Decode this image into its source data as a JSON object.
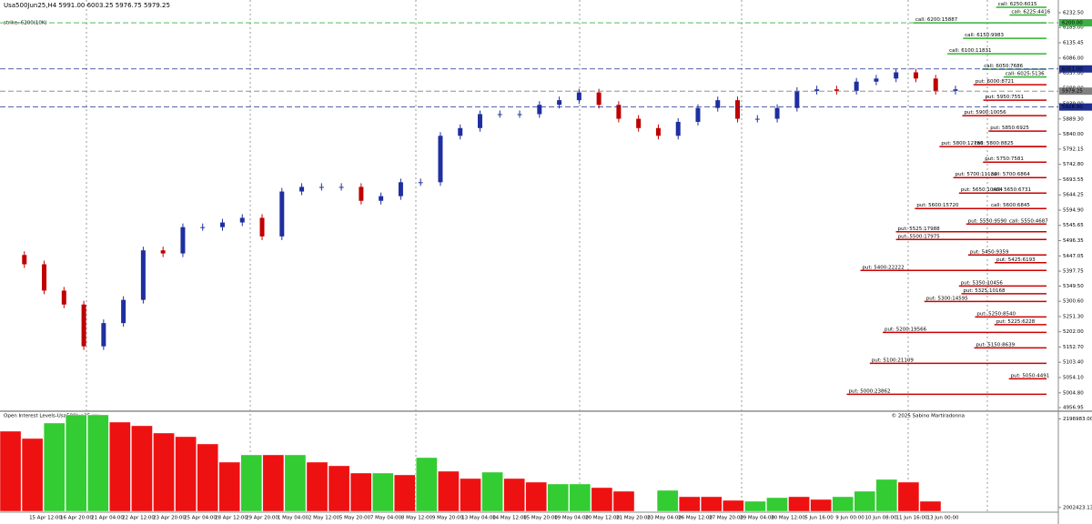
{
  "header": {
    "symbol_line": "Usa500Jun25,H4  5991.00 6003.25 5976.75 5979.25",
    "strike": "strike: 6200(10K)",
    "indicator": "Open Interest Levels-Usa500Jun25.csv",
    "copyright": "© 2025 Sabino Martiradonna"
  },
  "time_labels": [
    "15 Apr 12:00",
    "16 Apr 20:00",
    "21 Apr 04:00",
    "22 Apr 12:00",
    "23 Apr 20:00",
    "25 Apr 04:00",
    "28 Apr 12:00",
    "29 Apr 20:00",
    "1 May 04:00",
    "2 May 12:00",
    "5 May 20:00",
    "7 May 04:00",
    "8 May 12:00",
    "9 May 20:00",
    "13 May 04:00",
    "14 May 12:00",
    "15 May 20:00",
    "19 May 04:00",
    "20 May 12:00",
    "21 May 20:00",
    "23 May 04:00",
    "26 May 12:00",
    "27 May 20:00",
    "29 May 04:00",
    "30 May 12:00",
    "5 Jun 16:00",
    "9 Jun 00:00",
    "10 Jun 08:00",
    "11 Jun 16:00",
    "13 Jun 00:00"
  ],
  "chart_data": [
    {
      "type": "candle",
      "up_color": "#1f2fa0",
      "down_color": "#c00000",
      "ylim": [
        4951.3,
        6261.9
      ],
      "yticks": [
        {
          "value": 6232.5,
          "label": "6232.50"
        },
        {
          "value": 6185,
          "label": "6185.00"
        },
        {
          "value": 6135.45,
          "label": "6135.45"
        },
        {
          "value": 6086,
          "label": "6086.00"
        },
        {
          "value": 6037,
          "label": "6037.00"
        },
        {
          "value": 5988,
          "label": "5988.00"
        },
        {
          "value": 5939,
          "label": "5939.00"
        },
        {
          "value": 5889.3,
          "label": "5889.30"
        },
        {
          "value": 5840,
          "label": "5840.00"
        },
        {
          "value": 5792.15,
          "label": "5792.15"
        },
        {
          "value": 5742.8,
          "label": "5742.80"
        },
        {
          "value": 5693.55,
          "label": "5693.55"
        },
        {
          "value": 5644.25,
          "label": "5644.25"
        },
        {
          "value": 5594.9,
          "label": "5594.90"
        },
        {
          "value": 5545.65,
          "label": "5545.65"
        },
        {
          "value": 5496.35,
          "label": "5496.35"
        },
        {
          "value": 5447.05,
          "label": "5447.05"
        },
        {
          "value": 5397.75,
          "label": "5397.75"
        },
        {
          "value": 5349.5,
          "label": "5349.50"
        },
        {
          "value": 5300.6,
          "label": "5300.60"
        },
        {
          "value": 5251.3,
          "label": "5251.30"
        },
        {
          "value": 5202,
          "label": "5202.00"
        },
        {
          "value": 5152.7,
          "label": "5152.70"
        },
        {
          "value": 5103.4,
          "label": "5103.40"
        },
        {
          "value": 5054.1,
          "label": "5054.10"
        },
        {
          "value": 5004.8,
          "label": "5004.80"
        },
        {
          "value": 4956.95,
          "label": "4956.95"
        }
      ],
      "values": [
        5450,
        5420,
        5335,
        5290,
        5155,
        5230,
        5305,
        5465,
        5455,
        5540,
        5540,
        5555,
        5570,
        5510,
        5655,
        5670,
        5670,
        5670,
        5625,
        5640,
        5685,
        5685,
        5835,
        5860,
        5905,
        5905,
        5905,
        5935,
        5950,
        5975,
        5935,
        5890,
        5860,
        5835,
        5880,
        5925,
        5950,
        5890,
        5890,
        5925,
        5980,
        5985,
        5980,
        6010,
        6020,
        6040,
        6020,
        5980,
        5985
      ],
      "price_markers": [
        {
          "value": 6200,
          "label": "6200.00",
          "color": "#3cb043"
        },
        {
          "value": 6051,
          "label": "6051.00",
          "color": "#1f2f8f"
        },
        {
          "value": 5979.25,
          "label": "5979.25",
          "color": "#808080"
        },
        {
          "value": 5928,
          "label": "5928.00",
          "color": "#1f2f8f"
        }
      ],
      "levels": [
        {
          "side": "call",
          "strike": 6250,
          "oi": 6015,
          "label": "call: 6250:6015",
          "color": "#2fb52f"
        },
        {
          "side": "call",
          "strike": 6225,
          "oi": 4416,
          "label": "call: 6225:4416",
          "color": "#2fb52f"
        },
        {
          "side": "call",
          "strike": 6200,
          "oi": 15887,
          "label": "call: 6200:15887",
          "color": "#2fb52f"
        },
        {
          "side": "call",
          "strike": 6150,
          "oi": 9983,
          "label": "call: 6150:9983",
          "color": "#2fb52f"
        },
        {
          "side": "call",
          "strike": 6100,
          "oi": 11831,
          "label": "call: 6100:11831",
          "color": "#2fb52f"
        },
        {
          "side": "call",
          "strike": 6050,
          "oi": 7686,
          "label": "call: 6050:7686",
          "color": "#2fb52f"
        },
        {
          "side": "call",
          "strike": 6025,
          "oi": 5136,
          "label": "call: 6025:5136",
          "color": "#2fb52f"
        },
        {
          "side": "put",
          "strike": 6000,
          "oi": 8721,
          "label": "put: 6000:8721",
          "color": "#cc0000"
        },
        {
          "side": "put",
          "strike": 5950,
          "oi": 7551,
          "label": "put: 5950:7551",
          "color": "#cc0000"
        },
        {
          "side": "put",
          "strike": 5900,
          "oi": 10056,
          "label": "put: 5900:10056",
          "color": "#cc0000"
        },
        {
          "side": "put",
          "strike": 5850,
          "oi": 6925,
          "label": "put: 5850:6925",
          "color": "#cc0000"
        },
        {
          "side": "put",
          "strike": 5800,
          "oi": 12786,
          "label": "put: 5800:12786",
          "color": "#cc0000"
        },
        {
          "side": "call",
          "strike": 5800,
          "oi": 8825,
          "label": "call: 5800:8825",
          "color": "#cc0000"
        },
        {
          "side": "put",
          "strike": 5750,
          "oi": 7581,
          "label": "put: 5750:7581",
          "color": "#cc0000"
        },
        {
          "side": "put",
          "strike": 5700,
          "oi": 11130,
          "label": "put: 5700:11130",
          "color": "#cc0000"
        },
        {
          "side": "call",
          "strike": 5700,
          "oi": 6864,
          "label": "call: 5700:6864",
          "color": "#cc0000"
        },
        {
          "side": "put",
          "strike": 5650,
          "oi": 10454,
          "label": "put: 5650:10454",
          "color": "#cc0000"
        },
        {
          "side": "call",
          "strike": 5650,
          "oi": 6731,
          "label": "call: 5650:6731",
          "color": "#cc0000"
        },
        {
          "side": "put",
          "strike": 5600,
          "oi": 15720,
          "label": "put: 5600:15720",
          "color": "#cc0000"
        },
        {
          "side": "call",
          "strike": 5600,
          "oi": 6845,
          "label": "call: 5600:6845",
          "color": "#cc0000"
        },
        {
          "side": "put",
          "strike": 5550,
          "oi": 9590,
          "label": "put: 5550:9590",
          "color": "#cc0000"
        },
        {
          "side": "call",
          "strike": 5550,
          "oi": 4687,
          "label": "call: 5550:4687",
          "color": "#cc0000"
        },
        {
          "side": "put",
          "strike": 5525,
          "oi": 17988,
          "label": "put: 5525:17988",
          "color": "#cc0000"
        },
        {
          "side": "put",
          "strike": 5500,
          "oi": 17975,
          "label": "put: 5500:17975",
          "color": "#cc0000"
        },
        {
          "side": "put",
          "strike": 5450,
          "oi": 9359,
          "label": "put: 5450:9359",
          "color": "#cc0000"
        },
        {
          "side": "put",
          "strike": 5425,
          "oi": 6193,
          "label": "put: 5425:6193",
          "color": "#cc0000"
        },
        {
          "side": "put",
          "strike": 5400,
          "oi": 22222,
          "label": "put: 5400:22222",
          "color": "#cc0000"
        },
        {
          "side": "put",
          "strike": 5350,
          "oi": 10456,
          "label": "put: 5350:10456",
          "color": "#cc0000"
        },
        {
          "side": "put",
          "strike": 5325,
          "oi": 10168,
          "label": "put: 5325:10168",
          "color": "#cc0000"
        },
        {
          "side": "put",
          "strike": 5300,
          "oi": 14595,
          "label": "put: 5300:14595",
          "color": "#cc0000"
        },
        {
          "side": "put",
          "strike": 5250,
          "oi": 8540,
          "label": "put: 5250:8540",
          "color": "#cc0000"
        },
        {
          "side": "put",
          "strike": 5225,
          "oi": 6228,
          "label": "put: 5225:6228",
          "color": "#cc0000"
        },
        {
          "side": "put",
          "strike": 5200,
          "oi": 19566,
          "label": "put: 5200:19566",
          "color": "#cc0000"
        },
        {
          "side": "put",
          "strike": 5150,
          "oi": 8639,
          "label": "put: 5150:8639",
          "color": "#cc0000"
        },
        {
          "side": "put",
          "strike": 5100,
          "oi": 21109,
          "label": "put: 5100:21109",
          "color": "#cc0000"
        },
        {
          "side": "put",
          "strike": 5050,
          "oi": 4491,
          "label": "put: 5050:4491",
          "color": "#cc0000"
        },
        {
          "side": "put",
          "strike": 5000,
          "oi": 23862,
          "label": "put: 5000:23862",
          "color": "#cc0000"
        }
      ]
    },
    {
      "type": "bar",
      "ylim": [
        1994000,
        2214000
      ],
      "yticks": [
        {
          "value": 2196983,
          "label": "2196983.00"
        },
        {
          "value": 2002423.13,
          "label": "2002423.13"
        }
      ],
      "values": [
        2170000,
        2154000,
        2188000,
        2206000,
        2206000,
        2190000,
        2182000,
        2166000,
        2158000,
        2142000,
        2102000,
        2118000,
        2118000,
        2118000,
        2102000,
        2094000,
        2078000,
        2078000,
        2074000,
        2112000,
        2082000,
        2066000,
        2080000,
        2066000,
        2058000,
        2054000,
        2054000,
        2046000,
        2038000,
        null,
        2040000,
        2026000,
        2026000,
        2018000,
        2016000,
        2024000,
        2026000,
        2020000,
        2026000,
        2038000,
        2064000,
        2058000,
        2016000
      ],
      "colors": [
        "#ee1111",
        "#ee1111",
        "#33cc33",
        "#33cc33",
        "#33cc33",
        "#ee1111",
        "#ee1111",
        "#ee1111",
        "#ee1111",
        "#ee1111",
        "#ee1111",
        "#33cc33",
        "#ee1111",
        "#33cc33",
        "#ee1111",
        "#ee1111",
        "#ee1111",
        "#33cc33",
        "#ee1111",
        "#33cc33",
        "#ee1111",
        "#ee1111",
        "#33cc33",
        "#ee1111",
        "#ee1111",
        "#33cc33",
        "#33cc33",
        "#ee1111",
        "#ee1111",
        "#ee1111",
        "#33cc33",
        "#ee1111",
        "#ee1111",
        "#ee1111",
        "#33cc33",
        "#33cc33",
        "#ee1111",
        "#ee1111",
        "#33cc33",
        "#33cc33",
        "#33cc33",
        "#ee1111",
        "#ee1111"
      ]
    }
  ]
}
